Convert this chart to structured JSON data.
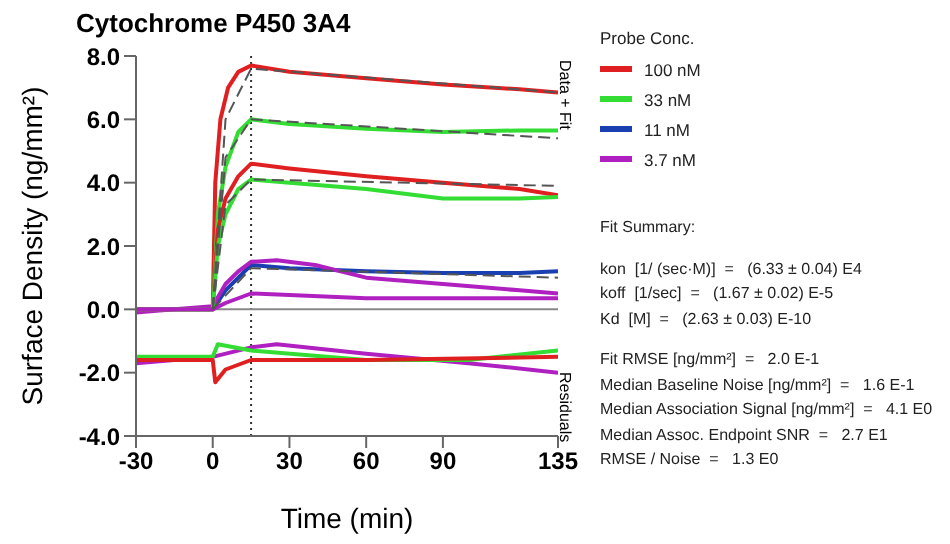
{
  "chart_data": {
    "type": "line",
    "title": "Cytochrome P450 3A4",
    "xlabel": "Time (min)",
    "ylabel": "Surface Density (ng/mm²)",
    "legend_title": "Probe Conc.",
    "legend": "right",
    "marker": "none",
    "line_style": "solid",
    "xlim": [
      -30,
      135
    ],
    "xticks": [
      -30,
      0,
      30,
      60,
      90,
      135
    ],
    "ylim": [
      -4,
      8
    ],
    "yticks": [
      {
        "value": -4,
        "label": "-4.0"
      },
      {
        "value": -2,
        "label": "-2.0"
      },
      {
        "value": 0,
        "label": "0.0"
      },
      {
        "value": 2,
        "label": "2.0"
      },
      {
        "value": 4,
        "label": "4.0"
      },
      {
        "value": 6,
        "label": "6.0"
      },
      {
        "value": 8,
        "label": "8.0"
      }
    ],
    "ref_lines": [
      {
        "axis": "x",
        "value": 15,
        "line_style": "dotted",
        "color": "#333333"
      },
      {
        "axis": "y",
        "value": 0,
        "line_style": "solid",
        "color": "#888888"
      }
    ],
    "series": [
      {
        "name": "100 nM",
        "color": "#e02020",
        "x": [
          -30,
          -15,
          0,
          1,
          3,
          6,
          10,
          15,
          30,
          60,
          90,
          120,
          135
        ],
        "values": [
          0,
          0,
          0,
          4,
          6,
          7,
          7.5,
          7.7,
          7.5,
          7.3,
          7.1,
          6.95,
          6.85
        ]
      },
      {
        "name": "33 nM",
        "color": "#33dd33",
        "x": [
          -30,
          -15,
          0,
          2,
          5,
          10,
          15,
          30,
          60,
          90,
          120,
          135
        ],
        "values": [
          0,
          0,
          0,
          3,
          4.5,
          5.6,
          6,
          5.85,
          5.7,
          5.6,
          5.65,
          5.65
        ]
      },
      {
        "name": "11 nM",
        "color": "#1a3fb0",
        "x": [
          -30,
          -15,
          0,
          5,
          10,
          15,
          30,
          60,
          90,
          120,
          135
        ],
        "values": [
          0,
          0,
          0,
          0.6,
          1,
          1.4,
          1.3,
          1.2,
          1.15,
          1.15,
          1.2
        ]
      },
      {
        "name": "3.7 nM",
        "color": "#b020c0",
        "x": [
          -30,
          -15,
          0,
          5,
          10,
          15,
          25,
          40,
          60,
          90,
          120,
          135
        ],
        "values": [
          -0.1,
          0,
          0.1,
          0.8,
          1.2,
          1.5,
          1.55,
          1.4,
          1,
          0.8,
          0.6,
          0.5
        ]
      },
      {
        "color": "#e02020",
        "x": [
          -30,
          -15,
          0,
          2,
          5,
          10,
          15,
          30,
          60,
          90,
          120,
          135
        ],
        "values": [
          0,
          0,
          0,
          2.5,
          3.5,
          4.2,
          4.6,
          4.45,
          4.2,
          4,
          3.8,
          3.6
        ]
      },
      {
        "color": "#33dd33",
        "x": [
          -30,
          -15,
          0,
          2,
          5,
          10,
          15,
          30,
          60,
          90,
          120,
          135
        ],
        "values": [
          0,
          0,
          0,
          2,
          3,
          3.8,
          4.1,
          4,
          3.8,
          3.5,
          3.5,
          3.55
        ]
      },
      {
        "color": "#b020c0",
        "x": [
          -30,
          -15,
          0,
          5,
          15,
          30,
          60,
          90,
          135
        ],
        "values": [
          0,
          0,
          0,
          0.2,
          0.5,
          0.45,
          0.35,
          0.35,
          0.35
        ]
      },
      {
        "color": "#555555",
        "line_style": "dashed",
        "x": [
          0,
          5,
          15,
          135
        ],
        "values": [
          0,
          6,
          7.6,
          6.85
        ]
      },
      {
        "color": "#555555",
        "line_style": "dashed",
        "x": [
          0,
          5,
          15,
          135
        ],
        "values": [
          0,
          4.8,
          6,
          5.4
        ]
      },
      {
        "color": "#555555",
        "line_style": "dashed",
        "x": [
          0,
          5,
          15,
          135
        ],
        "values": [
          0,
          3.3,
          4.1,
          3.9
        ]
      },
      {
        "color": "#555555",
        "line_style": "dashed",
        "x": [
          0,
          15,
          135
        ],
        "values": [
          0,
          1.3,
          1
        ]
      },
      {
        "color": "#b020c0",
        "x": [
          -30,
          0,
          15,
          25,
          60,
          100,
          135
        ],
        "values": [
          -1.7,
          -1.5,
          -1.2,
          -1.1,
          -1.4,
          -1.7,
          -2
        ]
      },
      {
        "color": "#33dd33",
        "x": [
          -30,
          0,
          2,
          15,
          60,
          100,
          135
        ],
        "values": [
          -1.5,
          -1.5,
          -1.1,
          -1.3,
          -1.6,
          -1.6,
          -1.3
        ]
      },
      {
        "color": "#e02020",
        "x": [
          -30,
          0,
          1,
          5,
          15,
          60,
          135
        ],
        "values": [
          -1.6,
          -1.6,
          -2.3,
          -1.9,
          -1.6,
          -1.6,
          -1.5
        ]
      }
    ],
    "annotations": [
      "Data + Fit",
      "Residuals",
      "Fit Summary:",
      "kon  [1/ (sec·M)]  =   (6.33 ± 0.04) E4",
      "koff  [1/sec]  =   (1.67 ± 0.02) E-5",
      "Kd  [M]  =   (2.63 ± 0.03) E-10",
      "Fit RMSE [ng/mm²]  =   2.0 E-1",
      "Median Baseline Noise [ng/mm²]  =   1.6 E-1",
      "Median Association Signal [ng/mm²]  =   4.1 E0",
      "Median Assoc. Endpoint SNR  =   2.7 E1",
      "RMSE / Noise  =   1.3 E0"
    ]
  }
}
